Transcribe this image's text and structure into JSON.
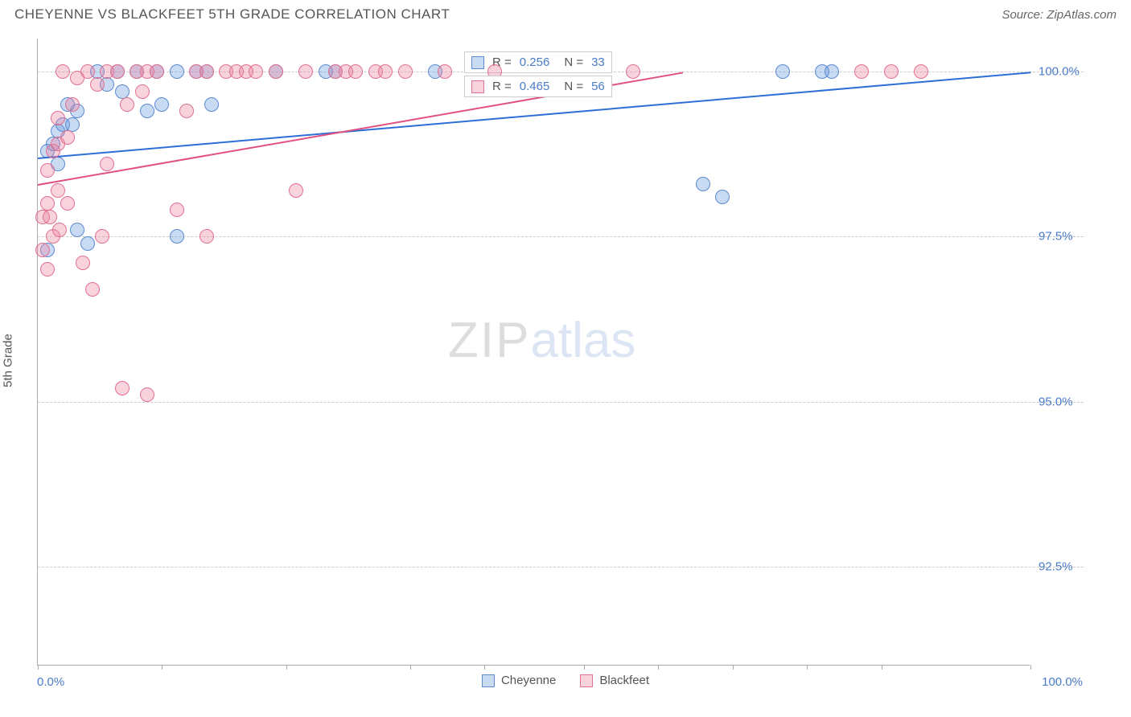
{
  "header": {
    "title": "CHEYENNE VS BLACKFEET 5TH GRADE CORRELATION CHART",
    "source": "Source: ZipAtlas.com"
  },
  "chart": {
    "type": "scatter",
    "yaxis_title": "5th Grade",
    "xlim": [
      0,
      100
    ],
    "ylim": [
      91.0,
      100.5
    ],
    "xtick_positions": [
      0,
      12.5,
      25,
      37.5,
      45,
      55,
      62.5,
      70,
      77.5,
      85,
      100
    ],
    "ytick_labels": [
      "100.0%",
      "97.5%",
      "95.0%",
      "92.5%"
    ],
    "ytick_values": [
      100.0,
      97.5,
      95.0,
      92.5
    ],
    "xaxis_label_left": "0.0%",
    "xaxis_label_right": "100.0%",
    "grid_color": "#cccccc",
    "axis_color": "#aaaaaa",
    "background_color": "#ffffff",
    "marker_radius": 9,
    "marker_stroke_width": 1.5,
    "series": [
      {
        "name": "Cheyenne",
        "fill_color": "rgba(100,150,220,0.35)",
        "stroke_color": "#5a8bd0",
        "trend_color": "#2e6fd6",
        "stats": {
          "r_label": "R =",
          "r_value": "0.256",
          "n_label": "N =",
          "n_value": "33"
        },
        "trendline": {
          "x1": 0,
          "y1": 98.7,
          "x2": 100,
          "y2": 100.0
        },
        "points": [
          [
            1,
            97.3
          ],
          [
            1,
            98.8
          ],
          [
            1.5,
            98.9
          ],
          [
            2,
            98.6
          ],
          [
            2,
            99.1
          ],
          [
            2.5,
            99.2
          ],
          [
            3,
            99.5
          ],
          [
            3.5,
            99.2
          ],
          [
            4,
            99.4
          ],
          [
            4,
            97.6
          ],
          [
            5,
            97.4
          ],
          [
            6,
            100.0
          ],
          [
            7,
            99.8
          ],
          [
            8,
            100.0
          ],
          [
            8.5,
            99.7
          ],
          [
            10,
            100.0
          ],
          [
            11,
            99.4
          ],
          [
            12,
            100.0
          ],
          [
            12.5,
            99.5
          ],
          [
            14,
            97.5
          ],
          [
            14,
            100.0
          ],
          [
            16,
            100.0
          ],
          [
            17,
            100.0
          ],
          [
            17.5,
            99.5
          ],
          [
            24,
            100.0
          ],
          [
            29,
            100.0
          ],
          [
            30,
            100.0
          ],
          [
            40,
            100.0
          ],
          [
            67,
            98.3
          ],
          [
            69,
            98.1
          ],
          [
            75,
            100.0
          ],
          [
            79,
            100.0
          ],
          [
            80,
            100.0
          ]
        ]
      },
      {
        "name": "Blackfeet",
        "fill_color": "rgba(235,130,160,0.35)",
        "stroke_color": "#e07090",
        "trend_color": "#e05080",
        "stats": {
          "r_label": "R =",
          "r_value": "0.465",
          "n_label": "N =",
          "n_value": "56"
        },
        "trendline": {
          "x1": 0,
          "y1": 98.3,
          "x2": 65,
          "y2": 100.0
        },
        "points": [
          [
            0.5,
            97.3
          ],
          [
            0.5,
            97.8
          ],
          [
            1,
            98.0
          ],
          [
            1,
            97.0
          ],
          [
            1,
            98.5
          ],
          [
            1.2,
            97.8
          ],
          [
            1.5,
            98.8
          ],
          [
            1.5,
            97.5
          ],
          [
            2,
            98.2
          ],
          [
            2,
            98.9
          ],
          [
            2,
            99.3
          ],
          [
            2.2,
            97.6
          ],
          [
            2.5,
            100.0
          ],
          [
            3,
            99.0
          ],
          [
            3,
            98.0
          ],
          [
            3.5,
            99.5
          ],
          [
            4,
            99.9
          ],
          [
            4.5,
            97.1
          ],
          [
            5,
            100.0
          ],
          [
            5.5,
            96.7
          ],
          [
            6,
            99.8
          ],
          [
            6.5,
            97.5
          ],
          [
            7,
            100.0
          ],
          [
            7,
            98.6
          ],
          [
            8,
            100.0
          ],
          [
            8.5,
            95.2
          ],
          [
            9,
            99.5
          ],
          [
            10,
            100.0
          ],
          [
            10.5,
            99.7
          ],
          [
            11,
            100.0
          ],
          [
            11,
            95.1
          ],
          [
            12,
            100.0
          ],
          [
            14,
            97.9
          ],
          [
            15,
            99.4
          ],
          [
            16,
            100.0
          ],
          [
            17,
            100.0
          ],
          [
            17,
            97.5
          ],
          [
            19,
            100.0
          ],
          [
            20,
            100.0
          ],
          [
            21,
            100.0
          ],
          [
            22,
            100.0
          ],
          [
            24,
            100.0
          ],
          [
            26,
            98.2
          ],
          [
            27,
            100.0
          ],
          [
            30,
            100.0
          ],
          [
            31,
            100.0
          ],
          [
            32,
            100.0
          ],
          [
            34,
            100.0
          ],
          [
            35,
            100.0
          ],
          [
            37,
            100.0
          ],
          [
            41,
            100.0
          ],
          [
            46,
            100.0
          ],
          [
            60,
            100.0
          ],
          [
            83,
            100.0
          ],
          [
            86,
            100.0
          ],
          [
            89,
            100.0
          ]
        ]
      }
    ],
    "legend": {
      "items": [
        {
          "label": "Cheyenne",
          "fill": "rgba(100,150,220,0.35)",
          "stroke": "#5a8bd0"
        },
        {
          "label": "Blackfeet",
          "fill": "rgba(235,130,160,0.35)",
          "stroke": "#e07090"
        }
      ]
    }
  },
  "watermark": {
    "part1": "ZIP",
    "part2": "atlas"
  }
}
